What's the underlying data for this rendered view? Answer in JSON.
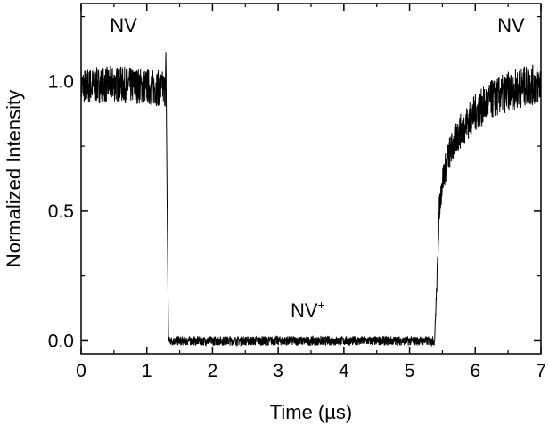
{
  "chart_data": {
    "type": "line",
    "title": "",
    "xlabel": "Time (µs)",
    "ylabel": "Normalized Intensity",
    "xlim": [
      0,
      7
    ],
    "ylim": [
      -0.05,
      1.3
    ],
    "xticks": [
      0,
      1,
      2,
      3,
      4,
      5,
      6,
      7
    ],
    "xtick_labels": [
      "0",
      "1",
      "2",
      "3",
      "4",
      "5",
      "6",
      "7"
    ],
    "yticks": [
      0.0,
      0.5,
      1.0
    ],
    "ytick_labels": [
      "0.0",
      "0.5",
      "1.0"
    ],
    "grid": false,
    "legend": "none",
    "series": [
      {
        "color": "#000000",
        "noise": "high",
        "x": [
          0,
          0.5,
          1.0,
          1.28,
          1.29,
          1.31,
          1.33,
          2.0,
          3.0,
          4.0,
          5.0,
          5.38,
          5.42,
          5.45,
          5.5,
          5.6,
          5.75,
          6.0,
          6.25,
          6.5,
          6.75,
          7.0
        ],
        "y": [
          0.98,
          0.99,
          0.98,
          0.97,
          1.12,
          0.5,
          0.0,
          0.0,
          0.0,
          0.0,
          0.0,
          0.0,
          0.25,
          0.5,
          0.62,
          0.72,
          0.8,
          0.88,
          0.93,
          0.96,
          0.98,
          0.99
        ]
      }
    ],
    "annotations": [
      {
        "text": "NV",
        "sup": "−",
        "x": 0.7,
        "y": 1.19
      },
      {
        "text": "NV",
        "sup": "+",
        "x": 3.45,
        "y": 0.09
      },
      {
        "text": "NV",
        "sup": "−",
        "x": 6.6,
        "y": 1.19
      }
    ]
  }
}
